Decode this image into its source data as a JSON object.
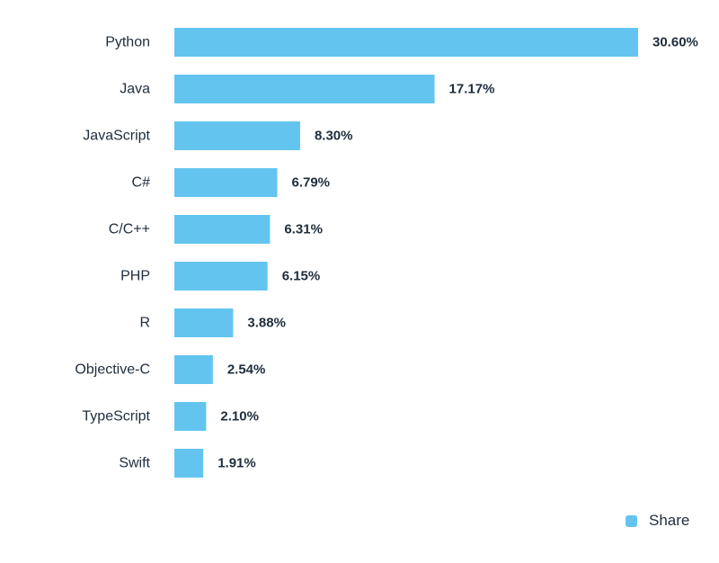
{
  "chart_data": {
    "type": "bar",
    "orientation": "horizontal",
    "categories": [
      "Python",
      "Java",
      "JavaScript",
      "C#",
      "C/C++",
      "PHP",
      "R",
      "Objective-C",
      "TypeScript",
      "Swift"
    ],
    "series": [
      {
        "name": "Share",
        "values": [
          30.6,
          17.17,
          8.3,
          6.79,
          6.31,
          6.15,
          3.88,
          2.54,
          2.1,
          1.91
        ],
        "labels": [
          "30.60%",
          "17.17%",
          "8.30%",
          "6.79%",
          "6.31%",
          "6.15%",
          "3.88%",
          "2.54%",
          "2.10%",
          "1.91%"
        ],
        "color": "#63c5ef"
      }
    ],
    "xlim": [
      0,
      30.6
    ],
    "grid": false,
    "legend_position": "bottom-right"
  },
  "legend": {
    "label": "Share",
    "color": "#63c5ef"
  }
}
